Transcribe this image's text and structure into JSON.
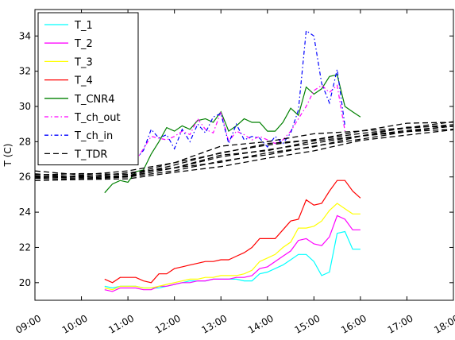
{
  "chart_data": {
    "type": "line",
    "title": "",
    "xlabel": "",
    "ylabel": "T (C)",
    "xlim": [
      "09:00",
      "18:00"
    ],
    "ylim": [
      19,
      35.5
    ],
    "x_ticks": [
      "09:00",
      "10:00",
      "11:00",
      "12:00",
      "13:00",
      "14:00",
      "15:00",
      "16:00",
      "17:00",
      "18:00"
    ],
    "y_ticks": [
      "20",
      "22",
      "24",
      "26",
      "28",
      "30",
      "32",
      "34"
    ],
    "y_tick_values": [
      20,
      22,
      24,
      26,
      28,
      30,
      32,
      34
    ],
    "grid": false,
    "legend_position": "top-left",
    "series": [
      {
        "name": "T_1",
        "color": "#00ffff",
        "style": "solid",
        "x": [
          "10:30",
          "10:40",
          "10:50",
          "11:00",
          "11:10",
          "11:20",
          "11:30",
          "11:40",
          "11:50",
          "12:00",
          "12:10",
          "12:20",
          "12:30",
          "12:40",
          "12:50",
          "13:00",
          "13:10",
          "13:20",
          "13:30",
          "13:40",
          "13:50",
          "14:00",
          "14:10",
          "14:20",
          "14:30",
          "14:40",
          "14:50",
          "15:00",
          "15:10",
          "15:20",
          "15:30",
          "15:40",
          "15:50",
          "16:00"
        ],
        "values": [
          19.8,
          19.7,
          19.8,
          19.8,
          19.8,
          19.7,
          19.7,
          19.7,
          19.8,
          19.9,
          20.0,
          20.1,
          20.1,
          20.1,
          20.2,
          20.2,
          20.2,
          20.2,
          20.1,
          20.1,
          20.5,
          20.6,
          20.8,
          21.0,
          21.3,
          21.6,
          21.6,
          21.2,
          20.4,
          20.6,
          22.8,
          22.9,
          21.9,
          21.9
        ]
      },
      {
        "name": "T_2",
        "color": "#ff00ff",
        "style": "solid",
        "x": [
          "10:30",
          "10:40",
          "10:50",
          "11:00",
          "11:10",
          "11:20",
          "11:30",
          "11:40",
          "11:50",
          "12:00",
          "12:10",
          "12:20",
          "12:30",
          "12:40",
          "12:50",
          "13:00",
          "13:10",
          "13:20",
          "13:30",
          "13:40",
          "13:50",
          "14:00",
          "14:10",
          "14:20",
          "14:30",
          "14:40",
          "14:50",
          "15:00",
          "15:10",
          "15:20",
          "15:30",
          "15:40",
          "15:50",
          "16:00"
        ],
        "values": [
          19.6,
          19.5,
          19.7,
          19.7,
          19.7,
          19.6,
          19.6,
          19.8,
          19.8,
          19.9,
          20.0,
          20.0,
          20.1,
          20.1,
          20.2,
          20.2,
          20.2,
          20.3,
          20.3,
          20.4,
          20.8,
          20.9,
          21.2,
          21.5,
          21.8,
          22.4,
          22.5,
          22.2,
          22.1,
          22.6,
          23.8,
          23.6,
          23.0,
          23.0
        ]
      },
      {
        "name": "T_3",
        "color": "#ffff00",
        "style": "solid",
        "x": [
          "10:30",
          "10:40",
          "10:50",
          "11:00",
          "11:10",
          "11:20",
          "11:30",
          "11:40",
          "11:50",
          "12:00",
          "12:10",
          "12:20",
          "12:30",
          "12:40",
          "12:50",
          "13:00",
          "13:10",
          "13:20",
          "13:30",
          "13:40",
          "13:50",
          "14:00",
          "14:10",
          "14:20",
          "14:30",
          "14:40",
          "14:50",
          "15:00",
          "15:10",
          "15:20",
          "15:30",
          "15:40",
          "15:50",
          "16:00"
        ],
        "values": [
          19.7,
          19.6,
          19.8,
          19.8,
          19.8,
          19.7,
          19.7,
          19.8,
          19.9,
          20.0,
          20.1,
          20.2,
          20.2,
          20.3,
          20.3,
          20.4,
          20.4,
          20.4,
          20.5,
          20.7,
          21.2,
          21.4,
          21.6,
          22.0,
          22.3,
          23.1,
          23.1,
          23.2,
          23.5,
          24.1,
          24.5,
          24.2,
          23.9,
          23.9
        ]
      },
      {
        "name": "T_4",
        "color": "#ff0000",
        "style": "solid",
        "x": [
          "10:30",
          "10:40",
          "10:50",
          "11:00",
          "11:10",
          "11:20",
          "11:30",
          "11:40",
          "11:50",
          "12:00",
          "12:10",
          "12:20",
          "12:30",
          "12:40",
          "12:50",
          "13:00",
          "13:10",
          "13:20",
          "13:30",
          "13:40",
          "13:50",
          "14:00",
          "14:10",
          "14:20",
          "14:30",
          "14:40",
          "14:50",
          "15:00",
          "15:10",
          "15:20",
          "15:30",
          "15:40",
          "15:50",
          "16:00"
        ],
        "values": [
          20.2,
          20.0,
          20.3,
          20.3,
          20.3,
          20.1,
          20.0,
          20.5,
          20.5,
          20.8,
          20.9,
          21.0,
          21.1,
          21.2,
          21.2,
          21.3,
          21.3,
          21.5,
          21.7,
          22.0,
          22.5,
          22.5,
          22.5,
          23.0,
          23.5,
          23.6,
          24.7,
          24.4,
          24.5,
          25.2,
          25.8,
          25.8,
          25.2,
          24.8
        ]
      },
      {
        "name": "T_CNR4",
        "color": "#008000",
        "style": "solid",
        "x": [
          "10:30",
          "10:40",
          "10:50",
          "11:00",
          "11:10",
          "11:20",
          "11:30",
          "11:40",
          "11:50",
          "12:00",
          "12:10",
          "12:20",
          "12:30",
          "12:40",
          "12:50",
          "13:00",
          "13:10",
          "13:20",
          "13:30",
          "13:40",
          "13:50",
          "14:00",
          "14:10",
          "14:20",
          "14:30",
          "14:40",
          "14:50",
          "15:00",
          "15:10",
          "15:20",
          "15:30",
          "15:40",
          "15:50",
          "16:00"
        ],
        "values": [
          25.1,
          25.6,
          25.8,
          25.7,
          26.3,
          26.4,
          27.3,
          28.0,
          28.8,
          28.6,
          28.9,
          28.7,
          29.2,
          29.3,
          29.1,
          29.7,
          28.6,
          28.9,
          29.3,
          29.1,
          29.1,
          28.6,
          28.6,
          29.1,
          29.9,
          29.5,
          31.1,
          30.7,
          31.0,
          31.7,
          31.8,
          30.0,
          29.7,
          29.4
        ]
      },
      {
        "name": "T_ch_out",
        "color": "#ff00ff",
        "style": "dashdot",
        "x": [
          "11:10",
          "11:20",
          "11:30",
          "11:40",
          "11:50",
          "12:00",
          "12:10",
          "12:20",
          "12:30",
          "12:40",
          "12:50",
          "13:00",
          "13:10",
          "13:20",
          "13:30",
          "13:40",
          "13:50",
          "14:00",
          "14:10",
          "14:20",
          "14:30",
          "14:40",
          "14:50",
          "15:00",
          "15:10",
          "15:20",
          "15:30",
          "15:40"
        ],
        "values": [
          26.9,
          27.6,
          28.3,
          28.2,
          28.1,
          28.3,
          28.6,
          28.4,
          29.3,
          28.7,
          28.5,
          29.7,
          28.0,
          28.6,
          28.4,
          28.1,
          28.3,
          28.1,
          27.9,
          28.1,
          28.6,
          29.3,
          30.0,
          30.9,
          31.2,
          30.8,
          31.2,
          28.6
        ]
      },
      {
        "name": "T_ch_in",
        "color": "#0000ff",
        "style": "dashdot",
        "x": [
          "11:10",
          "11:20",
          "11:30",
          "11:40",
          "11:50",
          "12:00",
          "12:10",
          "12:20",
          "12:30",
          "12:40",
          "12:50",
          "13:00",
          "13:10",
          "13:20",
          "13:30",
          "13:40",
          "13:50",
          "14:00",
          "14:10",
          "14:20",
          "14:30",
          "14:40",
          "14:50",
          "15:00",
          "15:10",
          "15:20",
          "15:30",
          "15:40"
        ],
        "values": [
          27.0,
          27.5,
          28.7,
          28.2,
          28.4,
          27.6,
          28.7,
          28.0,
          29.0,
          28.5,
          29.4,
          29.6,
          27.9,
          29.0,
          28.1,
          28.3,
          28.2,
          27.7,
          28.3,
          27.9,
          28.5,
          29.8,
          34.3,
          34.0,
          31.3,
          30.2,
          32.1,
          28.9
        ]
      },
      {
        "name": "T_TDR",
        "color": "#000000",
        "style": "dashed",
        "band": {
          "x": [
            "09:00",
            "10:00",
            "11:00",
            "12:00",
            "13:00",
            "14:00",
            "15:00",
            "16:00",
            "17:00",
            "18:00"
          ],
          "low": [
            25.9,
            25.9,
            26.0,
            26.3,
            26.7,
            27.1,
            27.6,
            28.1,
            28.5,
            28.7
          ],
          "high": [
            26.2,
            26.1,
            26.2,
            26.8,
            27.6,
            28.0,
            28.3,
            28.6,
            28.9,
            29.1
          ]
        }
      }
    ]
  }
}
